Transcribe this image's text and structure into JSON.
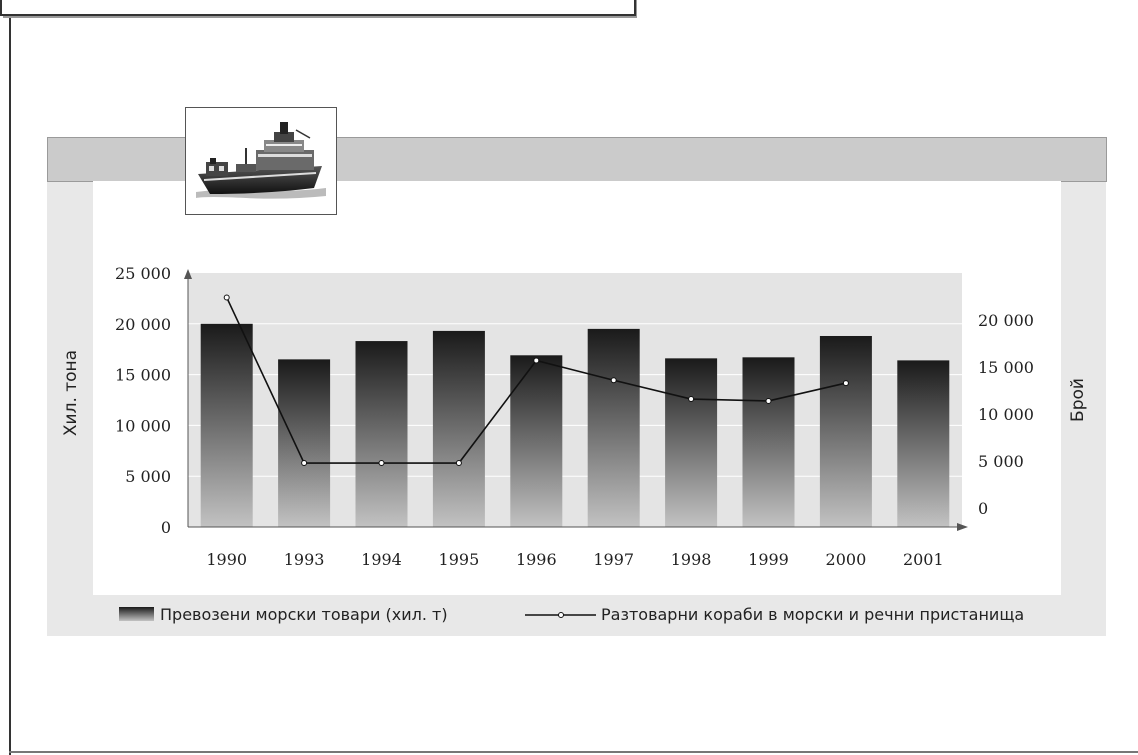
{
  "chart_data": {
    "type": "bar",
    "categories": [
      "1990",
      "1993",
      "1994",
      "1995",
      "1996",
      "1997",
      "1998",
      "1999",
      "2000",
      "2001"
    ],
    "series": [
      {
        "name": "Превозени морски товари (хил. т)",
        "type": "bar",
        "axis": "left",
        "values": [
          20000,
          16500,
          18300,
          19300,
          16900,
          19500,
          16600,
          16700,
          18800,
          16400
        ]
      },
      {
        "name": "Разтоварни кораби в морски и речни пристанища",
        "type": "line",
        "axis": "right",
        "values": [
          22400,
          4800,
          4800,
          4800,
          15700,
          13600,
          11600,
          11400,
          13300,
          null
        ]
      }
    ],
    "y_left": {
      "label": "Хил. тона",
      "lim": [
        0,
        25000
      ],
      "ticks": [
        0,
        5000,
        10000,
        15000,
        20000,
        25000
      ],
      "tick_labels": [
        "0",
        "5 000",
        "10 000",
        "15 000",
        "20 000",
        "25 000"
      ]
    },
    "y_right": {
      "label": "Брой",
      "lim": [
        -2000,
        25000
      ],
      "ticks": [
        0,
        5000,
        10000,
        15000,
        20000
      ],
      "tick_labels": [
        "0",
        "5 000",
        "10 000",
        "15 000",
        "20 000"
      ]
    },
    "legend_placement": "bottom",
    "grid": true
  },
  "colors": {
    "bar_top": "#1a1a1a",
    "bar_bottom": "#c2c2c2",
    "plot_background": "#e4e4e4",
    "line": "#111111"
  },
  "header_image": "ship-icon"
}
